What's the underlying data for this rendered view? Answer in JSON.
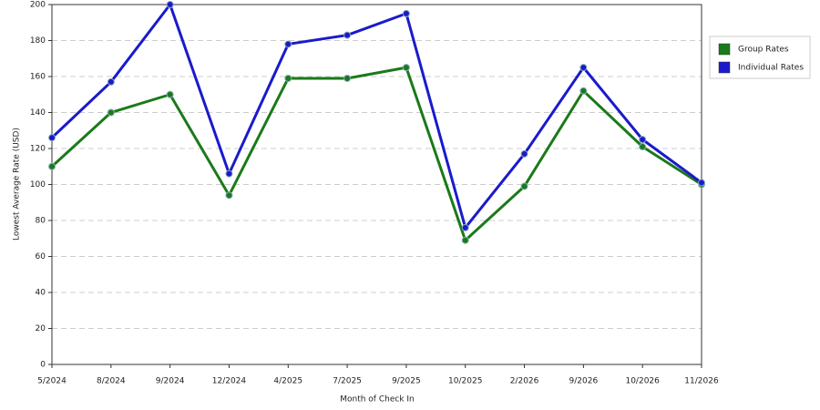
{
  "chart_data": {
    "type": "line",
    "x_label": "Month of Check In",
    "y_label": "Lowest Average Rate (USD)",
    "categories": [
      "5/2024",
      "8/2024",
      "9/2024",
      "12/2024",
      "4/2025",
      "7/2025",
      "9/2025",
      "10/2025",
      "2/2026",
      "9/2026",
      "10/2026",
      "11/2026"
    ],
    "series": [
      {
        "name": "Group Rates",
        "color": "#1a7a1a",
        "values": [
          110,
          140,
          150,
          94,
          159,
          159,
          165,
          69,
          99,
          152,
          121,
          100
        ]
      },
      {
        "name": "Individual Rates",
        "color": "#1a1acc",
        "values": [
          126,
          157,
          200,
          106,
          178,
          183,
          195,
          76,
          117,
          165,
          125,
          101
        ]
      }
    ],
    "ylim": [
      0,
      200
    ],
    "yticks": [
      0,
      20,
      40,
      60,
      80,
      100,
      120,
      140,
      160,
      180,
      200
    ],
    "grid": true,
    "legend": "right"
  }
}
